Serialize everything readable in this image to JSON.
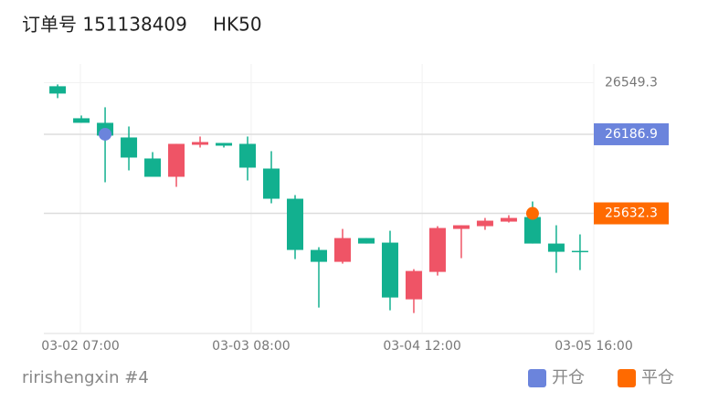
{
  "header": {
    "title": "订单号 151138409",
    "symbol": "HK50"
  },
  "chart_data": {
    "type": "candlestick",
    "x": [
      0,
      1,
      2,
      3,
      4,
      5,
      6,
      7,
      8,
      9,
      10,
      11,
      12,
      13,
      14,
      15,
      16,
      17,
      18,
      19,
      20,
      21,
      22
    ],
    "open": [
      26523.7,
      26299.2,
      26267.2,
      26164.5,
      26017.1,
      25888.8,
      26113.2,
      26126.1,
      26119.7,
      25946.5,
      25734.9,
      25375.8,
      25292.4,
      25459.1,
      25427.1,
      25029.4,
      25221.8,
      25523.2,
      25542.5,
      25574.5,
      25606.6,
      25420.6,
      25369.3
    ],
    "high": [
      26536.5,
      26318.5,
      26376.2,
      26241.5,
      26061.9,
      26119.7,
      26171.0,
      26126.1,
      26171.0,
      26068.4,
      25760.5,
      25395.0,
      25523.2,
      25459.1,
      25510.4,
      25241.1,
      25542.5,
      25548.9,
      25600.2,
      25619.4,
      25715.6,
      25548.9,
      25484.8
    ],
    "low": [
      26440.3,
      26267.2,
      25850.3,
      25933.7,
      25888.8,
      25818.2,
      26094.0,
      26094.0,
      25863.1,
      25702.8,
      25311.6,
      24971.7,
      25279.6,
      25420.6,
      24952.5,
      24933.3,
      25196.2,
      25318.0,
      25516.8,
      25568.1,
      25420.6,
      25215.4,
      25234.7
    ],
    "close": [
      26472.4,
      26267.2,
      26177.4,
      26023.5,
      25888.8,
      26119.7,
      26132.5,
      26106.8,
      25952.9,
      25734.9,
      25375.8,
      25292.4,
      25459.1,
      25420.6,
      25042.3,
      25228.3,
      25529.7,
      25548.9,
      25581.0,
      25600.2,
      25420.6,
      25362.9,
      25362.9
    ],
    "up_color": "#ef5466",
    "down_color": "#12b08f",
    "xlim": [
      -0.58,
      22.58
    ],
    "xticks": [
      {
        "value": 0.96,
        "label": "03-02 07:00"
      },
      {
        "value": 8.15,
        "label": "03-03 08:00"
      },
      {
        "value": 15.35,
        "label": "03-04 12:00"
      },
      {
        "value": 22.58,
        "label": "03-05 16:00"
      }
    ],
    "ylim": [
      24790,
      26680
    ],
    "yticks": [
      26549.3
    ],
    "markers": [
      {
        "name": "开仓",
        "color": "#6b84dc",
        "x": 2,
        "value": 26186.9
      },
      {
        "name": "平仓",
        "color": "#ff6a00",
        "x": 20,
        "value": 25632.3
      }
    ],
    "footer": "ririshengxin #4"
  }
}
